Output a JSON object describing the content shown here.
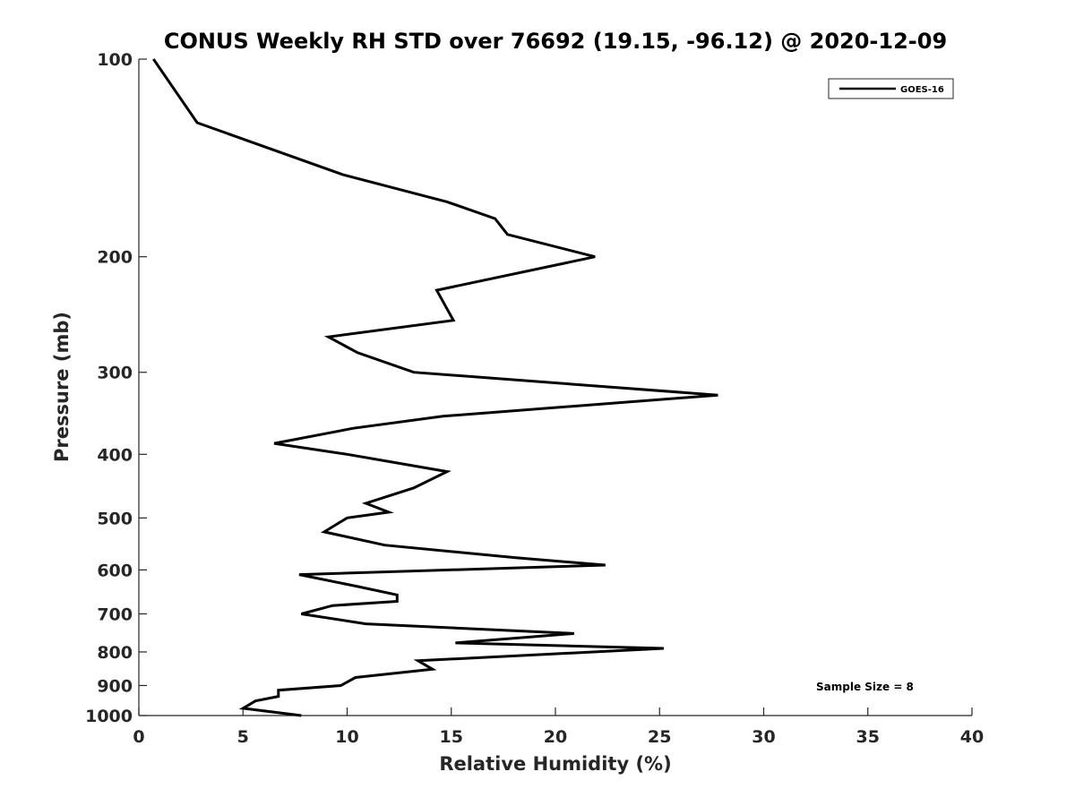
{
  "chart_data": {
    "type": "line",
    "title": "CONUS Weekly RH STD over 76692 (19.15, -96.12) @ 2020-12-09",
    "xlabel": "Relative Humidity (%)",
    "ylabel": "Pressure (mb)",
    "xlim": [
      0,
      40
    ],
    "ylim": [
      100,
      1000
    ],
    "y_scale": "log",
    "y_reversed": true,
    "grid": false,
    "legend_position": "top-right",
    "x_ticks": [
      "0",
      "5",
      "10",
      "15",
      "20",
      "25",
      "30",
      "35",
      "40"
    ],
    "y_ticks": [
      "100",
      "200",
      "300",
      "400",
      "500",
      "600",
      "700",
      "800",
      "900",
      "1000"
    ],
    "series": [
      {
        "name": "GOES-16",
        "color": "#000000",
        "points": [
          [
            0.7,
            100
          ],
          [
            2.8,
            125
          ],
          [
            9.8,
            150
          ],
          [
            14.8,
            165
          ],
          [
            17.1,
            175
          ],
          [
            17.7,
            185
          ],
          [
            21.9,
            200
          ],
          [
            14.3,
            225
          ],
          [
            15.1,
            250
          ],
          [
            9.1,
            265
          ],
          [
            10.5,
            280
          ],
          [
            13.2,
            300
          ],
          [
            27.8,
            325
          ],
          [
            14.6,
            350
          ],
          [
            10.3,
            365
          ],
          [
            6.5,
            385
          ],
          [
            10.0,
            400
          ],
          [
            14.8,
            425
          ],
          [
            13.2,
            450
          ],
          [
            10.9,
            475
          ],
          [
            12.0,
            490
          ],
          [
            10.0,
            500
          ],
          [
            8.9,
            525
          ],
          [
            11.8,
            550
          ],
          [
            18.1,
            575
          ],
          [
            22.4,
            590
          ],
          [
            7.7,
            610
          ],
          [
            10.4,
            635
          ],
          [
            12.4,
            655
          ],
          [
            12.4,
            670
          ],
          [
            9.3,
            680
          ],
          [
            7.8,
            700
          ],
          [
            10.9,
            725
          ],
          [
            20.9,
            750
          ],
          [
            15.2,
            775
          ],
          [
            25.2,
            790
          ],
          [
            13.4,
            825
          ],
          [
            14.1,
            850
          ],
          [
            10.4,
            875
          ],
          [
            9.7,
            900
          ],
          [
            6.7,
            915
          ],
          [
            6.7,
            935
          ],
          [
            5.6,
            950
          ],
          [
            5.0,
            975
          ],
          [
            7.8,
            1000
          ]
        ]
      }
    ],
    "annotations": [
      "Sample Size = 8"
    ]
  }
}
